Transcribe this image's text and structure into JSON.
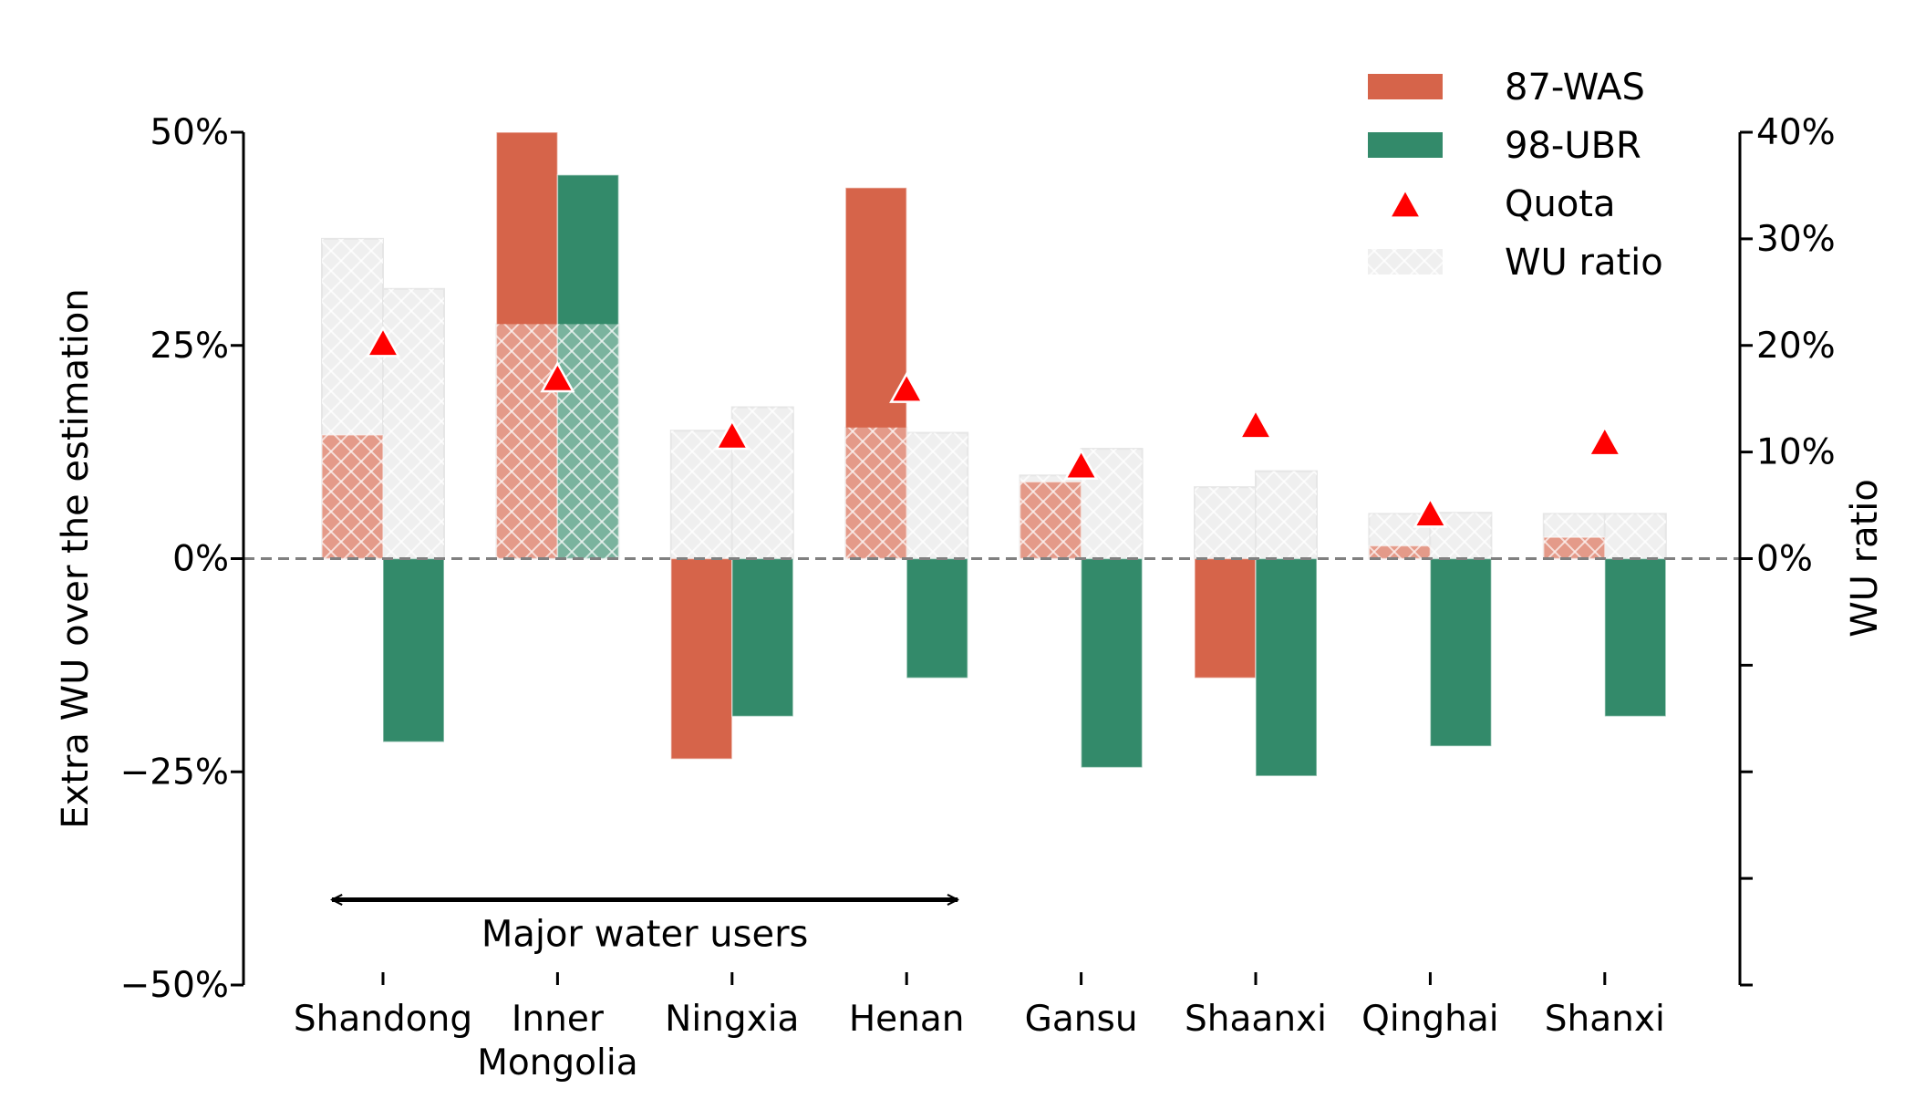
{
  "chart_data": {
    "type": "bar",
    "categories": [
      "Shandong",
      "Inner\nMongolia",
      "Ningxia",
      "Henan",
      "Gansu",
      "Shaanxi",
      "Qinghai",
      "Shanxi"
    ],
    "series": [
      {
        "name": "87-WAS",
        "color": "#d6644a",
        "values": [
          14.5,
          50,
          -23.5,
          43.5,
          9,
          -14,
          1.5,
          2.5
        ]
      },
      {
        "name": "98-UBR",
        "color": "#338a6a",
        "values": [
          -21.5,
          45,
          -18.5,
          -14,
          -24.5,
          -25.5,
          -22,
          -18.5
        ]
      }
    ],
    "wu_ratio": {
      "name": "WU ratio",
      "axis": "right",
      "values_87": [
        30,
        22,
        12,
        12.3,
        7.8,
        6.7,
        4.2,
        4.2
      ],
      "values_98": [
        25.3,
        22,
        14.2,
        11.8,
        10.3,
        8.2,
        4.3,
        4.2
      ]
    },
    "quota": {
      "name": "Quota",
      "axis": "right",
      "color": "#ff0000",
      "values": [
        20,
        16.7,
        11.3,
        15.7,
        8.5,
        12.3,
        4,
        10.7
      ]
    },
    "ylabel": "Extra WU over the estimation",
    "ylim": [
      -50,
      50
    ],
    "yticks": [
      {
        "value": -50,
        "label": "−50%"
      },
      {
        "value": -25,
        "label": "−25%"
      },
      {
        "value": 0,
        "label": "0%"
      },
      {
        "value": 25,
        "label": "25%"
      },
      {
        "value": 50,
        "label": "50%"
      }
    ],
    "y2label": "WU ratio",
    "y2lim": [
      -40,
      40
    ],
    "y2ticks": [
      {
        "value": -40,
        "label": ""
      },
      {
        "value": -30,
        "label": ""
      },
      {
        "value": -20,
        "label": ""
      },
      {
        "value": -10,
        "label": ""
      },
      {
        "value": 0,
        "label": "0%"
      },
      {
        "value": 10,
        "label": "10%"
      },
      {
        "value": 20,
        "label": "20%"
      },
      {
        "value": 30,
        "label": "30%"
      },
      {
        "value": 40,
        "label": "40%"
      }
    ],
    "legend": {
      "position": "top-right",
      "entries": [
        "87-WAS",
        "98-UBR",
        "Quota",
        "WU ratio"
      ]
    },
    "annotation": {
      "text": "Major water users",
      "from_category": "Shandong",
      "to_category": "Henan",
      "y": -40
    },
    "zero_line": "dashed",
    "grid": false
  }
}
